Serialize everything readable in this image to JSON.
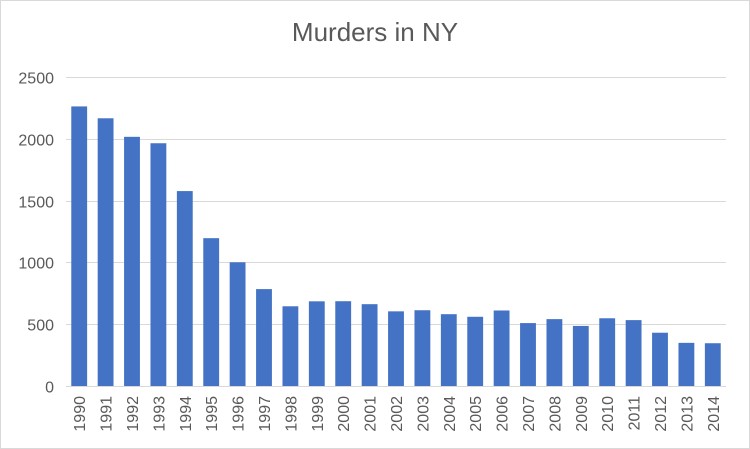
{
  "chart_data": {
    "type": "bar",
    "title": "Murders in NY",
    "xlabel": "",
    "ylabel": "",
    "categories": [
      "1990",
      "1991",
      "1992",
      "1993",
      "1994",
      "1995",
      "1996",
      "1997",
      "1998",
      "1999",
      "2000",
      "2001",
      "2002",
      "2003",
      "2004",
      "2005",
      "2006",
      "2007",
      "2008",
      "2009",
      "2010",
      "2011",
      "2012",
      "2013",
      "2014"
    ],
    "series": [
      {
        "values": [
          2262,
          2166,
          2016,
          1964,
          1577,
          1196,
          1001,
          784,
          645,
          685,
          686,
          662,
          604,
          613,
          581,
          560,
          611,
          509,
          541,
          486,
          548,
          533,
          431,
          349,
          346
        ],
        "color": "#4472c4"
      }
    ],
    "ylim": [
      0,
      2500
    ],
    "yticks": [
      "0",
      "500",
      "1000",
      "1500",
      "2000",
      "2500"
    ],
    "grid": true,
    "legend": "none",
    "colors": {
      "bar": "#4472c4",
      "grid": "#d9d9d9",
      "text": "#595959"
    }
  }
}
